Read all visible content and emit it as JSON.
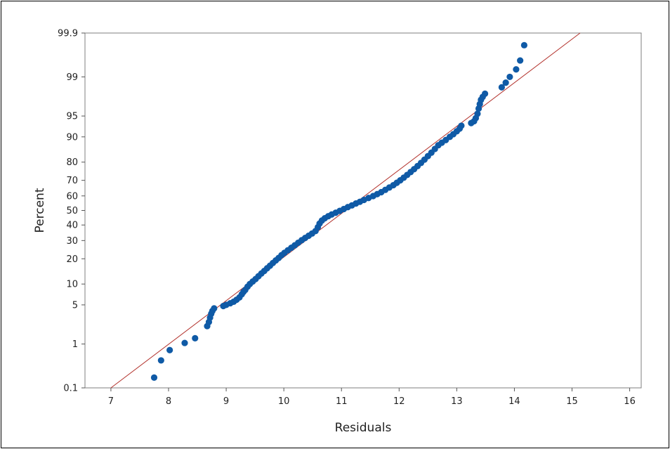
{
  "chart_data": {
    "type": "scatter",
    "title": "",
    "xlabel": "Residuals",
    "ylabel": "Percent",
    "xlim": [
      6.55,
      16.2
    ],
    "ylim_percent": [
      0.1,
      99.9
    ],
    "y_scale": "normal-probability",
    "grid": false,
    "legend": "none",
    "x_ticks": [
      "7",
      "8",
      "9",
      "10",
      "11",
      "12",
      "13",
      "14",
      "15",
      "16"
    ],
    "y_ticks": [
      "0.1",
      "1",
      "5",
      "10",
      "20",
      "30",
      "40",
      "50",
      "60",
      "70",
      "80",
      "90",
      "95",
      "99",
      "99.9"
    ],
    "reference_line": {
      "x": [
        7.0,
        15.14
      ],
      "y": [
        0.1,
        99.9
      ],
      "color": "#b2302a"
    },
    "point_color": "#0f5aa6",
    "points": [
      [
        7.75,
        0.18
      ],
      [
        7.87,
        0.45
      ],
      [
        8.02,
        0.75
      ],
      [
        8.28,
        1.05
      ],
      [
        8.46,
        1.3
      ],
      [
        8.67,
        2.2
      ],
      [
        8.7,
        2.6
      ],
      [
        8.72,
        3.1
      ],
      [
        8.74,
        3.6
      ],
      [
        8.76,
        4.0
      ],
      [
        8.79,
        4.4
      ],
      [
        8.95,
        4.8
      ],
      [
        9.0,
        5.0
      ],
      [
        9.07,
        5.3
      ],
      [
        9.13,
        5.6
      ],
      [
        9.18,
        6.0
      ],
      [
        9.23,
        6.5
      ],
      [
        9.27,
        7.2
      ],
      [
        9.3,
        7.8
      ],
      [
        9.33,
        8.3
      ],
      [
        9.37,
        9.2
      ],
      [
        9.41,
        10.0
      ],
      [
        9.46,
        10.8
      ],
      [
        9.51,
        11.6
      ],
      [
        9.56,
        12.6
      ],
      [
        9.61,
        13.6
      ],
      [
        9.66,
        14.6
      ],
      [
        9.71,
        15.7
      ],
      [
        9.76,
        16.8
      ],
      [
        9.81,
        18.0
      ],
      [
        9.86,
        19.2
      ],
      [
        9.91,
        20.4
      ],
      [
        9.96,
        21.8
      ],
      [
        10.01,
        23.0
      ],
      [
        10.07,
        24.4
      ],
      [
        10.13,
        25.8
      ],
      [
        10.19,
        27.2
      ],
      [
        10.25,
        28.7
      ],
      [
        10.31,
        30.2
      ],
      [
        10.37,
        31.6
      ],
      [
        10.43,
        33.0
      ],
      [
        10.49,
        34.4
      ],
      [
        10.55,
        36.0
      ],
      [
        10.59,
        38.5
      ],
      [
        10.62,
        41.0
      ],
      [
        10.66,
        43.0
      ],
      [
        10.71,
        44.6
      ],
      [
        10.77,
        46.0
      ],
      [
        10.83,
        47.2
      ],
      [
        10.9,
        48.4
      ],
      [
        10.97,
        49.7
      ],
      [
        11.04,
        51.0
      ],
      [
        11.11,
        52.3
      ],
      [
        11.18,
        53.5
      ],
      [
        11.25,
        54.8
      ],
      [
        11.32,
        56.0
      ],
      [
        11.39,
        57.3
      ],
      [
        11.47,
        58.6
      ],
      [
        11.55,
        59.9
      ],
      [
        11.62,
        61.2
      ],
      [
        11.69,
        62.5
      ],
      [
        11.76,
        64.0
      ],
      [
        11.83,
        65.5
      ],
      [
        11.9,
        67.0
      ],
      [
        11.96,
        68.5
      ],
      [
        12.02,
        70.0
      ],
      [
        12.08,
        71.6
      ],
      [
        12.14,
        73.2
      ],
      [
        12.2,
        74.8
      ],
      [
        12.26,
        76.4
      ],
      [
        12.32,
        78.0
      ],
      [
        12.38,
        79.6
      ],
      [
        12.44,
        81.2
      ],
      [
        12.5,
        82.8
      ],
      [
        12.56,
        84.3
      ],
      [
        12.62,
        85.8
      ],
      [
        12.68,
        87.2
      ],
      [
        12.74,
        88.1
      ],
      [
        12.81,
        89.0
      ],
      [
        12.88,
        90.0
      ],
      [
        12.94,
        90.8
      ],
      [
        13.0,
        91.6
      ],
      [
        13.05,
        92.3
      ],
      [
        13.08,
        93.0
      ],
      [
        13.25,
        93.6
      ],
      [
        13.3,
        94.0
      ],
      [
        13.33,
        94.6
      ],
      [
        13.36,
        95.4
      ],
      [
        13.38,
        96.2
      ],
      [
        13.4,
        96.8
      ],
      [
        13.42,
        97.3
      ],
      [
        13.45,
        97.6
      ],
      [
        13.49,
        97.9
      ],
      [
        13.78,
        98.4
      ],
      [
        13.85,
        98.7
      ],
      [
        13.92,
        99.0
      ],
      [
        14.03,
        99.3
      ],
      [
        14.1,
        99.55
      ],
      [
        14.17,
        99.8
      ]
    ]
  }
}
